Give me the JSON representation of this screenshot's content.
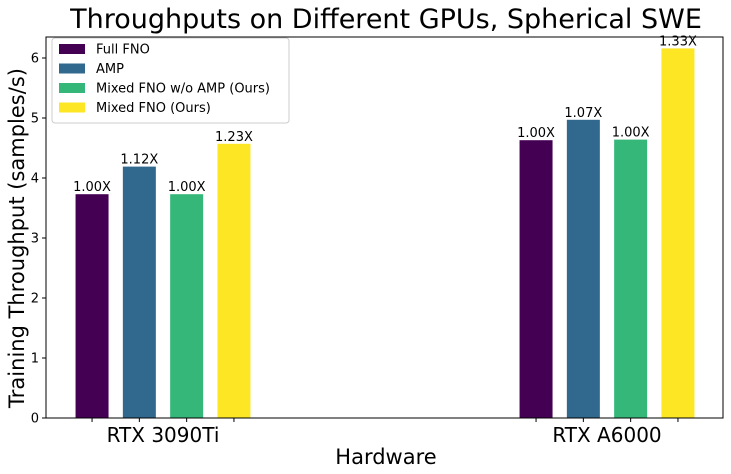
{
  "chart_data": {
    "type": "bar",
    "title": "Throughputs on Different GPUs, Spherical SWE",
    "xlabel": "Hardware",
    "ylabel": "Training Throughput (samples/s)",
    "ylim": [
      0,
      6.35
    ],
    "yticks": [
      0,
      1,
      2,
      3,
      4,
      5,
      6
    ],
    "categories": [
      "RTX 3090Ti",
      "RTX A6000"
    ],
    "legend_position": "top-left",
    "series": [
      {
        "name": "Full FNO",
        "color": "#440154",
        "values": [
          3.73,
          4.63
        ],
        "labels": [
          "1.00X",
          "1.00X"
        ]
      },
      {
        "name": "AMP",
        "color": "#31688e",
        "values": [
          4.19,
          4.97
        ],
        "labels": [
          "1.12X",
          "1.07X"
        ]
      },
      {
        "name": "Mixed FNO w/o AMP (Ours)",
        "color": "#35b779",
        "values": [
          3.73,
          4.64
        ],
        "labels": [
          "1.00X",
          "1.00X"
        ]
      },
      {
        "name": "Mixed FNO (Ours)",
        "color": "#fde725",
        "values": [
          4.57,
          6.16
        ],
        "labels": [
          "1.23X",
          "1.33X"
        ]
      }
    ]
  }
}
